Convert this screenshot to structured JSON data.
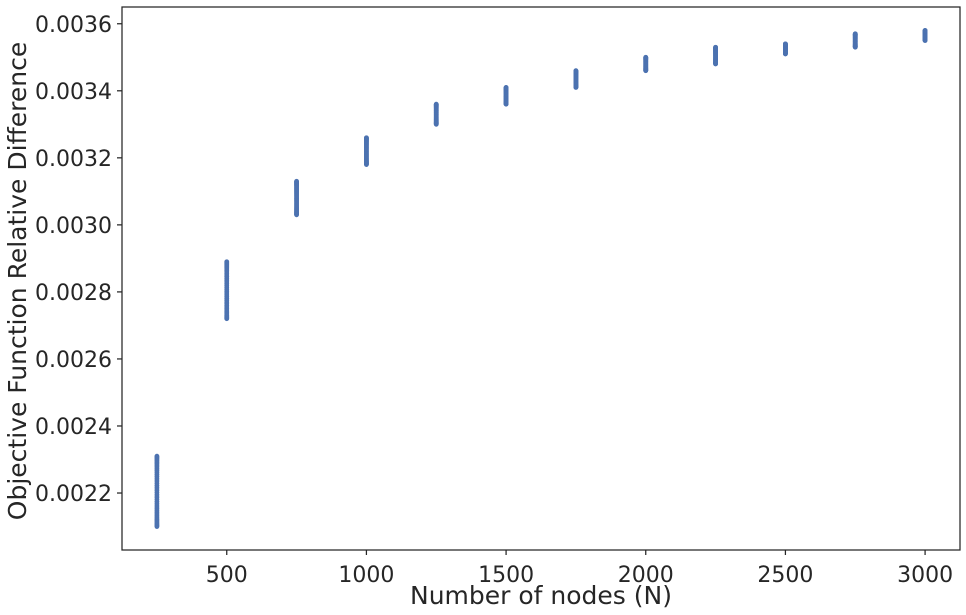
{
  "chart_data": {
    "type": "scatter",
    "title": "",
    "xlabel": "Number of nodes (N)",
    "ylabel": "Objective Function Relative Difference",
    "xlim": [
      125,
      3125
    ],
    "ylim": [
      0.00203,
      0.00365
    ],
    "grid": false,
    "marker_color": "#4c72b0",
    "x_ticks": [
      500,
      1000,
      1500,
      2000,
      2500,
      3000
    ],
    "x_tick_labels": [
      "500",
      "1000",
      "1500",
      "2000",
      "2500",
      "3000"
    ],
    "y_ticks": [
      0.0022,
      0.0024,
      0.0026,
      0.0028,
      0.003,
      0.0032,
      0.0034,
      0.0036
    ],
    "y_tick_labels": [
      "0.0022",
      "0.0024",
      "0.0026",
      "0.0028",
      "0.0030",
      "0.0032",
      "0.0034",
      "0.0036"
    ],
    "clusters": [
      {
        "x": 250,
        "y_min": 0.0021,
        "y_max": 0.00231
      },
      {
        "x": 500,
        "y_min": 0.00272,
        "y_max": 0.00289
      },
      {
        "x": 750,
        "y_min": 0.00303,
        "y_max": 0.00313
      },
      {
        "x": 1000,
        "y_min": 0.00318,
        "y_max": 0.00326
      },
      {
        "x": 1250,
        "y_min": 0.0033,
        "y_max": 0.00336
      },
      {
        "x": 1500,
        "y_min": 0.00336,
        "y_max": 0.00341
      },
      {
        "x": 1750,
        "y_min": 0.00341,
        "y_max": 0.00346
      },
      {
        "x": 2000,
        "y_min": 0.00346,
        "y_max": 0.0035
      },
      {
        "x": 2250,
        "y_min": 0.00348,
        "y_max": 0.00353
      },
      {
        "x": 2500,
        "y_min": 0.00351,
        "y_max": 0.00354
      },
      {
        "x": 2750,
        "y_min": 0.00353,
        "y_max": 0.00357
      },
      {
        "x": 3000,
        "y_min": 0.00355,
        "y_max": 0.00358
      }
    ]
  }
}
